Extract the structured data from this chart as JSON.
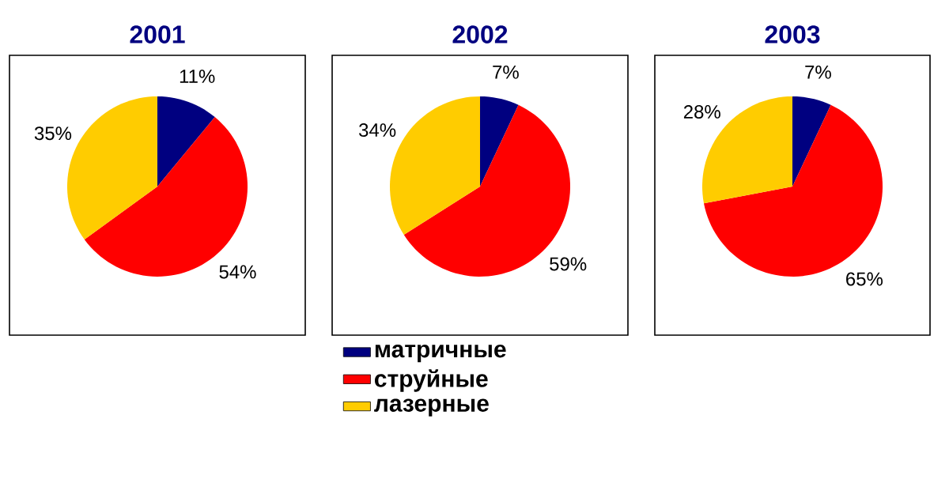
{
  "chart_data": [
    {
      "type": "pie",
      "title": "2001",
      "categories": [
        null,
        null,
        null
      ],
      "values": [
        11,
        54,
        35
      ],
      "colors": [
        "#000080",
        "#ff0000",
        "#ffcc00"
      ],
      "value_labels": [
        "11%",
        "54%",
        "35%"
      ]
    },
    {
      "type": "pie",
      "title": "2002",
      "categories": [
        "матричные",
        "струйные",
        "лазерные"
      ],
      "values": [
        7,
        59,
        34
      ],
      "colors": [
        "#000080",
        "#ff0000",
        "#ffcc00"
      ],
      "value_labels": [
        "7%",
        "59%",
        "34%"
      ],
      "legend": "bottom"
    },
    {
      "type": "pie",
      "title": "2003",
      "categories": [
        null,
        null,
        null
      ],
      "values": [
        7,
        65,
        28
      ],
      "colors": [
        "#000080",
        "#ff0000",
        "#ffcc00"
      ],
      "value_labels": [
        "7%",
        "65%",
        "28%"
      ]
    }
  ]
}
